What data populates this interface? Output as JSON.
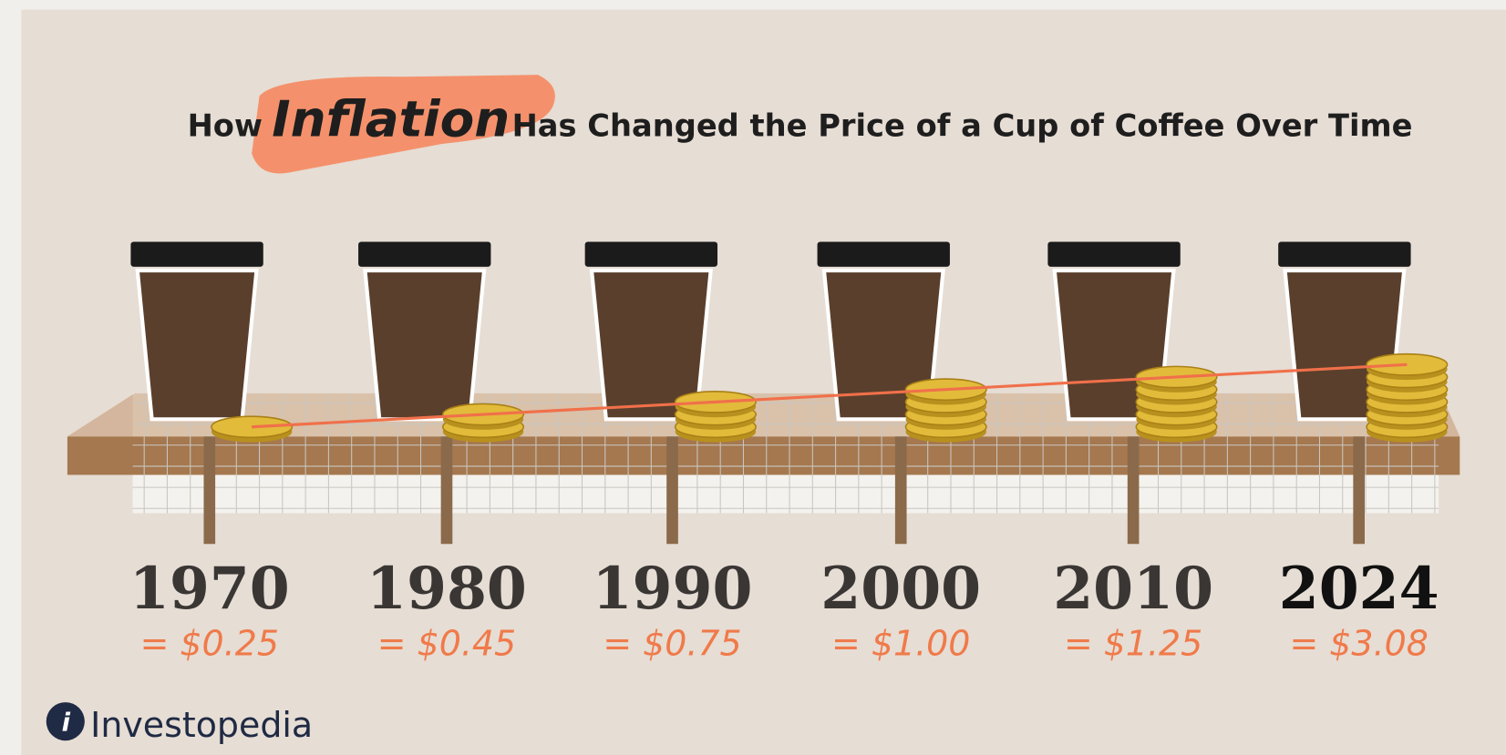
{
  "header": {
    "title_before": "How",
    "title_highlight": "Inflation",
    "title_after": "Has Changed the Price of a Cup of Coffee Over Time"
  },
  "timeline": [
    {
      "year": "1970",
      "price": "= $0.25"
    },
    {
      "year": "1980",
      "price": "= $0.45"
    },
    {
      "year": "1990",
      "price": "= $0.75"
    },
    {
      "year": "2000",
      "price": "= $1.00"
    },
    {
      "year": "2010",
      "price": "= $1.25"
    },
    {
      "year": "2024",
      "price": "= $3.08"
    }
  ],
  "footer": {
    "logo": "Investopedia"
  }
}
